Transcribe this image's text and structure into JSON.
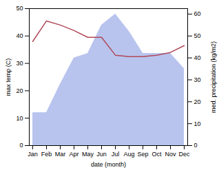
{
  "chart_data": {
    "type": "line",
    "xlabel": "date (month)",
    "ylabel": "max temp (C)",
    "y2label": "med. precipitation (kg/m2)",
    "categories": [
      "Jan",
      "Feb",
      "Mar",
      "Apr",
      "May",
      "Jun",
      "Jul",
      "Aug",
      "Sep",
      "Oct",
      "Nov",
      "Dec"
    ],
    "series": [
      {
        "type": "area",
        "axis": "y2",
        "color": "#b8c4ee",
        "values": [
          15,
          15,
          28,
          40,
          42,
          55,
          60,
          52,
          42,
          42,
          42,
          35
        ]
      },
      {
        "type": "line",
        "color": "#b04858",
        "values": [
          38,
          45.5,
          44,
          42,
          39.5,
          39.5,
          33,
          32.5,
          32.5,
          33,
          34,
          36.5
        ]
      }
    ],
    "ylim": [
      0,
      50
    ],
    "yticks": [
      0,
      10,
      20,
      30,
      40,
      50
    ],
    "y2lim": [
      0,
      62.5
    ],
    "y2ticks": [
      0,
      10,
      20,
      30,
      40,
      50,
      60
    ],
    "grid": false
  }
}
